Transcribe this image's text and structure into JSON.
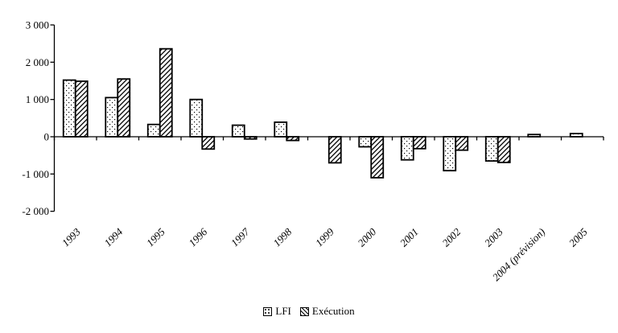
{
  "figure": {
    "background": "#ffffff",
    "axis_color": "#000000"
  },
  "chart_data": {
    "type": "bar",
    "title": "",
    "xlabel": "",
    "ylabel": "",
    "categories": [
      "1993",
      "1994",
      "1995",
      "1996",
      "1997",
      "1998",
      "1999",
      "2000",
      "2001",
      "2002",
      "2003",
      "2004 (prévision)",
      "2005"
    ],
    "series": [
      {
        "name": "LFI",
        "pattern": "dots",
        "values": [
          1520,
          1050,
          330,
          1000,
          310,
          390,
          null,
          -270,
          -620,
          -910,
          -650,
          60,
          85
        ]
      },
      {
        "name": "Exécution",
        "pattern": "hatch",
        "values": [
          1490,
          1550,
          2360,
          -330,
          -60,
          -100,
          -700,
          -1100,
          -320,
          -360,
          -690,
          null,
          null
        ]
      }
    ],
    "ylim": [
      -2000,
      3000
    ],
    "yticks": [
      {
        "value": 3000,
        "label": "3 000"
      },
      {
        "value": 2000,
        "label": "2 000"
      },
      {
        "value": 1000,
        "label": "1 000"
      },
      {
        "value": 0,
        "label": "0"
      },
      {
        "value": -1000,
        "label": "-1 000"
      },
      {
        "value": -2000,
        "label": "-2 000"
      }
    ],
    "grid": false,
    "legend_position": "bottom-center",
    "bar_fill": "#ffffff",
    "bar_stroke": "#000000"
  }
}
